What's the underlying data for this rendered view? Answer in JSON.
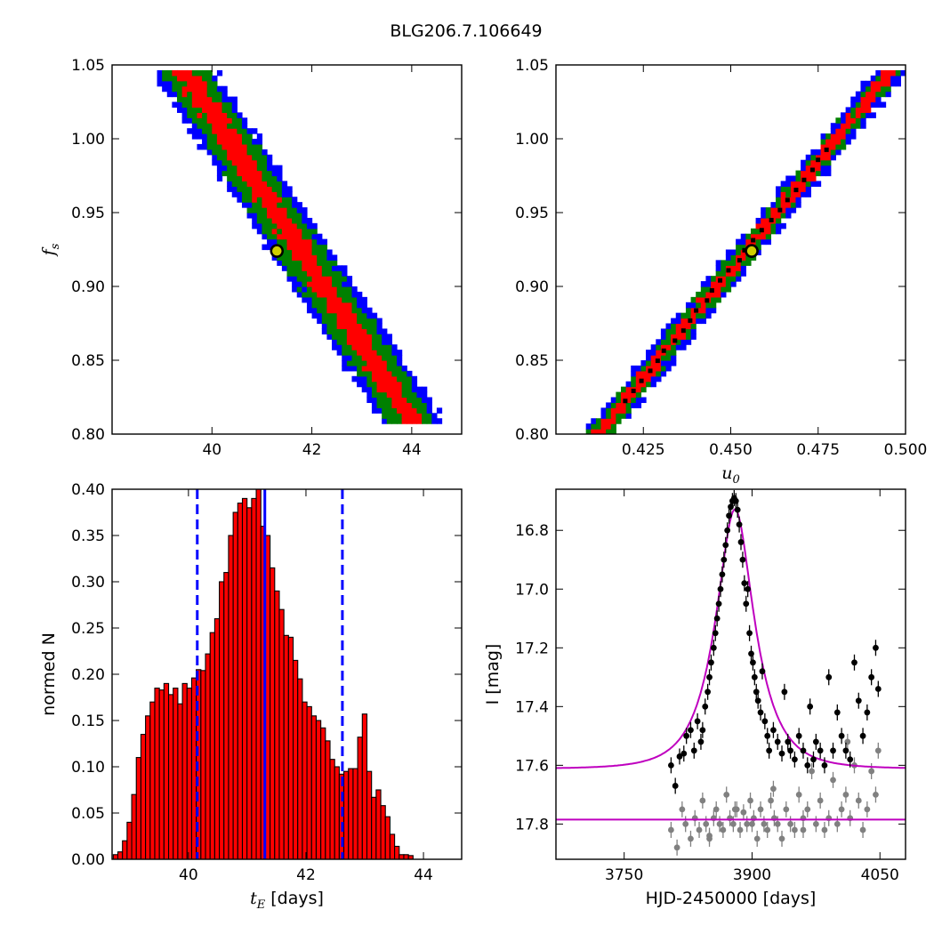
{
  "figure": {
    "title": "BLG206.7.106649",
    "colors": {
      "blue": "#0000ff",
      "green": "#008000",
      "red": "#ff0000",
      "black": "#000000",
      "gray": "#808080",
      "magenta": "#bf00bf",
      "marker_fill": "#cfcf00"
    }
  },
  "chart_data": [
    {
      "type": "heatmap",
      "panel": "top-left",
      "xlabel": "",
      "ylabel": "f_s",
      "xlim": [
        38.0,
        45.0
      ],
      "ylim": [
        0.8,
        1.05
      ],
      "xticks": [
        "40",
        "42",
        "44"
      ],
      "yticks": [
        "0.80",
        "0.85",
        "0.90",
        "0.95",
        "1.00",
        "1.05"
      ],
      "band": {
        "x_at_top": 39.45,
        "x_at_bottom": 44.0,
        "y_top": 1.045,
        "y_bottom": 0.81,
        "halfwidth_blue": 0.62,
        "halfwidth_green": 0.48,
        "halfwidth_red": 0.22
      },
      "best_fit": {
        "x": 41.3,
        "y": 0.924
      },
      "legend": "none"
    },
    {
      "type": "heatmap",
      "panel": "top-right",
      "xlabel": "u_0",
      "ylabel": "",
      "xlim": [
        0.4,
        0.5
      ],
      "ylim": [
        0.8,
        1.05
      ],
      "xticks": [
        "0.425",
        "0.450",
        "0.475",
        "0.500"
      ],
      "yticks": [
        "0.80",
        "0.85",
        "0.90",
        "0.95",
        "1.00",
        "1.05"
      ],
      "band": {
        "x_at_bottom": 0.413,
        "x_at_top": 0.496,
        "y_bottom": 0.803,
        "y_top": 1.046,
        "halfwidth_blue": 0.0045,
        "halfwidth_green": 0.0032,
        "halfwidth_red": 0.0016
      },
      "best_fit": {
        "x": 0.456,
        "y": 0.924
      },
      "legend": "none"
    },
    {
      "type": "bar",
      "panel": "bottom-left",
      "xlabel": "t_E [days]",
      "ylabel": "normed N",
      "xlim": [
        38.7,
        44.65
      ],
      "ylim": [
        0.0,
        0.4
      ],
      "xticks": [
        "40",
        "42",
        "44"
      ],
      "yticks": [
        "0.00",
        "0.05",
        "0.10",
        "0.15",
        "0.20",
        "0.25",
        "0.30",
        "0.35",
        "0.40"
      ],
      "bin_start": 38.72,
      "bin_width": 0.0785,
      "values": [
        0.005,
        0.008,
        0.02,
        0.04,
        0.07,
        0.11,
        0.135,
        0.155,
        0.17,
        0.185,
        0.183,
        0.19,
        0.178,
        0.185,
        0.168,
        0.19,
        0.185,
        0.196,
        0.205,
        0.204,
        0.222,
        0.245,
        0.26,
        0.3,
        0.31,
        0.35,
        0.375,
        0.385,
        0.39,
        0.38,
        0.39,
        0.405,
        0.36,
        0.35,
        0.315,
        0.29,
        0.27,
        0.242,
        0.24,
        0.215,
        0.195,
        0.17,
        0.165,
        0.155,
        0.15,
        0.142,
        0.128,
        0.108,
        0.1,
        0.092,
        0.095,
        0.098,
        0.098,
        0.132,
        0.157,
        0.095,
        0.067,
        0.075,
        0.058,
        0.046,
        0.027,
        0.014,
        0.005,
        0.005,
        0.004
      ],
      "lines": {
        "median": 41.3,
        "lower": 40.15,
        "upper": 42.62
      },
      "legend": "none"
    },
    {
      "type": "scatter",
      "panel": "bottom-right",
      "xlabel": "HJD-2450000 [days]",
      "ylabel": "I [mag]",
      "xlim": [
        3670,
        4080
      ],
      "ylim": [
        17.92,
        16.66
      ],
      "xticks": [
        "3750",
        "3900",
        "4050"
      ],
      "yticks": [
        "16.8",
        "17.0",
        "17.2",
        "17.4",
        "17.6",
        "17.8"
      ],
      "model": {
        "t0": 3880,
        "tE": 41.3,
        "u0": 0.456,
        "baseline": 17.612,
        "blend_ratio": 0.924
      },
      "series": [
        {
          "name": "",
          "color": "black",
          "points": [
            [
              3805,
              17.6
            ],
            [
              3810,
              17.67
            ],
            [
              3815,
              17.57
            ],
            [
              3820,
              17.56
            ],
            [
              3823,
              17.5
            ],
            [
              3828,
              17.48
            ],
            [
              3832,
              17.55
            ],
            [
              3836,
              17.45
            ],
            [
              3840,
              17.52
            ],
            [
              3842,
              17.48
            ],
            [
              3845,
              17.4
            ],
            [
              3848,
              17.35
            ],
            [
              3850,
              17.3
            ],
            [
              3852,
              17.25
            ],
            [
              3855,
              17.2
            ],
            [
              3857,
              17.15
            ],
            [
              3859,
              17.1
            ],
            [
              3861,
              17.05
            ],
            [
              3863,
              17.0
            ],
            [
              3865,
              16.95
            ],
            [
              3867,
              16.9
            ],
            [
              3869,
              16.85
            ],
            [
              3871,
              16.8
            ],
            [
              3873,
              16.75
            ],
            [
              3875,
              16.72
            ],
            [
              3877,
              16.7
            ],
            [
              3879,
              16.69
            ],
            [
              3881,
              16.7
            ],
            [
              3883,
              16.73
            ],
            [
              3885,
              16.78
            ],
            [
              3887,
              16.84
            ],
            [
              3889,
              16.9
            ],
            [
              3891,
              16.98
            ],
            [
              3893,
              17.05
            ],
            [
              3895,
              17.0
            ],
            [
              3897,
              17.15
            ],
            [
              3899,
              17.22
            ],
            [
              3901,
              17.25
            ],
            [
              3903,
              17.3
            ],
            [
              3905,
              17.35
            ],
            [
              3907,
              17.38
            ],
            [
              3910,
              17.42
            ],
            [
              3912,
              17.28
            ],
            [
              3915,
              17.45
            ],
            [
              3918,
              17.5
            ],
            [
              3920,
              17.55
            ],
            [
              3925,
              17.48
            ],
            [
              3930,
              17.52
            ],
            [
              3935,
              17.56
            ],
            [
              3938,
              17.35
            ],
            [
              3942,
              17.52
            ],
            [
              3945,
              17.55
            ],
            [
              3950,
              17.58
            ],
            [
              3955,
              17.5
            ],
            [
              3960,
              17.55
            ],
            [
              3965,
              17.6
            ],
            [
              3968,
              17.4
            ],
            [
              3972,
              17.58
            ],
            [
              3975,
              17.52
            ],
            [
              3980,
              17.55
            ],
            [
              3985,
              17.6
            ],
            [
              3990,
              17.3
            ],
            [
              3995,
              17.55
            ],
            [
              4000,
              17.42
            ],
            [
              4005,
              17.5
            ],
            [
              4010,
              17.55
            ],
            [
              4015,
              17.58
            ],
            [
              4020,
              17.25
            ],
            [
              4025,
              17.38
            ],
            [
              4030,
              17.5
            ],
            [
              4035,
              17.42
            ],
            [
              4040,
              17.3
            ],
            [
              4045,
              17.2
            ],
            [
              4048,
              17.34
            ]
          ]
        },
        {
          "name": "",
          "color": "gray",
          "points": [
            [
              3805,
              17.82
            ],
            [
              3812,
              17.88
            ],
            [
              3818,
              17.75
            ],
            [
              3822,
              17.8
            ],
            [
              3828,
              17.85
            ],
            [
              3833,
              17.78
            ],
            [
              3838,
              17.82
            ],
            [
              3842,
              17.72
            ],
            [
              3846,
              17.8
            ],
            [
              3850,
              17.84
            ],
            [
              3855,
              17.78
            ],
            [
              3858,
              17.75
            ],
            [
              3862,
              17.8
            ],
            [
              3866,
              17.82
            ],
            [
              3870,
              17.7
            ],
            [
              3874,
              17.78
            ],
            [
              3878,
              17.8
            ],
            [
              3882,
              17.75
            ],
            [
              3886,
              17.82
            ],
            [
              3890,
              17.76
            ],
            [
              3894,
              17.8
            ],
            [
              3898,
              17.72
            ],
            [
              3902,
              17.78
            ],
            [
              3906,
              17.85
            ],
            [
              3910,
              17.75
            ],
            [
              3914,
              17.8
            ],
            [
              3918,
              17.82
            ],
            [
              3922,
              17.72
            ],
            [
              3926,
              17.78
            ],
            [
              3930,
              17.8
            ],
            [
              3935,
              17.85
            ],
            [
              3940,
              17.75
            ],
            [
              3945,
              17.8
            ],
            [
              3950,
              17.82
            ],
            [
              3955,
              17.7
            ],
            [
              3960,
              17.78
            ],
            [
              3965,
              17.75
            ],
            [
              3970,
              17.62
            ],
            [
              3975,
              17.8
            ],
            [
              3980,
              17.72
            ],
            [
              3985,
              17.82
            ],
            [
              3990,
              17.78
            ],
            [
              3995,
              17.65
            ],
            [
              4000,
              17.8
            ],
            [
              4005,
              17.75
            ],
            [
              4010,
              17.7
            ],
            [
              4015,
              17.78
            ],
            [
              4020,
              17.6
            ],
            [
              4025,
              17.72
            ],
            [
              4030,
              17.82
            ],
            [
              4035,
              17.75
            ],
            [
              4040,
              17.62
            ],
            [
              4045,
              17.7
            ],
            [
              4048,
              17.55
            ],
            [
              3880,
              17.75
            ],
            [
              3900,
              17.8
            ],
            [
              3925,
              17.68
            ],
            [
              3960,
              17.82
            ],
            [
              4012,
              17.52
            ],
            [
              3850,
              17.85
            ]
          ]
        }
      ],
      "legend": "none"
    }
  ]
}
